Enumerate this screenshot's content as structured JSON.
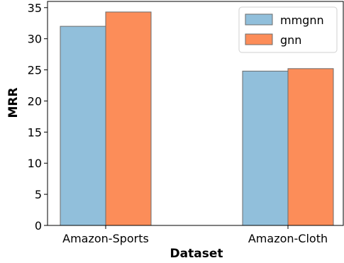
{
  "chart_data": {
    "type": "bar",
    "categories": [
      "Amazon-Sports",
      "Amazon-Cloth"
    ],
    "series": [
      {
        "name": "mmgnn",
        "values": [
          32.0,
          24.8
        ],
        "color": "#91bfdb"
      },
      {
        "name": "gnn",
        "values": [
          34.3,
          25.2
        ],
        "color": "#fc8d59"
      }
    ],
    "xlabel": "Dataset",
    "ylabel": "MRR",
    "ylim": [
      0,
      36
    ],
    "yticks": [
      0,
      5,
      10,
      15,
      20,
      25,
      30,
      35
    ],
    "grid": false,
    "legend": "top-right"
  }
}
